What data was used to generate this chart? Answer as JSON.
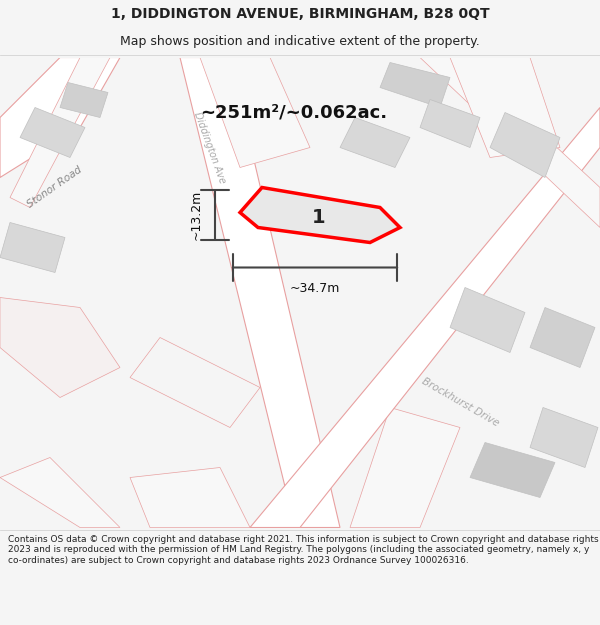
{
  "title_line1": "1, DIDDINGTON AVENUE, BIRMINGHAM, B28 0QT",
  "title_line2": "Map shows position and indicative extent of the property.",
  "area_text": "~251m²/~0.062ac.",
  "width_label": "~34.7m",
  "height_label": "~13.2m",
  "plot_number": "1",
  "road_label1": "Stonor Road",
  "road_label2": "Diddington Ave",
  "road_label3": "Brockhurst Drive",
  "footer_text": "Contains OS data © Crown copyright and database right 2021. This information is subject to Crown copyright and database rights 2023 and is reproduced with the permission of HM Land Registry. The polygons (including the associated geometry, namely x, y co-ordinates) are subject to Crown copyright and database rights 2023 Ordnance Survey 100026316.",
  "bg_color": "#f5f5f5",
  "map_bg": "#f0eded",
  "plot_fill": "#e8e8e8",
  "plot_edge": "#ff0000",
  "road_fill": "#ffffff",
  "road_edge": "#e8a0a0",
  "building_fill": "#d8d8d8",
  "building_edge": "#c0c0c0"
}
